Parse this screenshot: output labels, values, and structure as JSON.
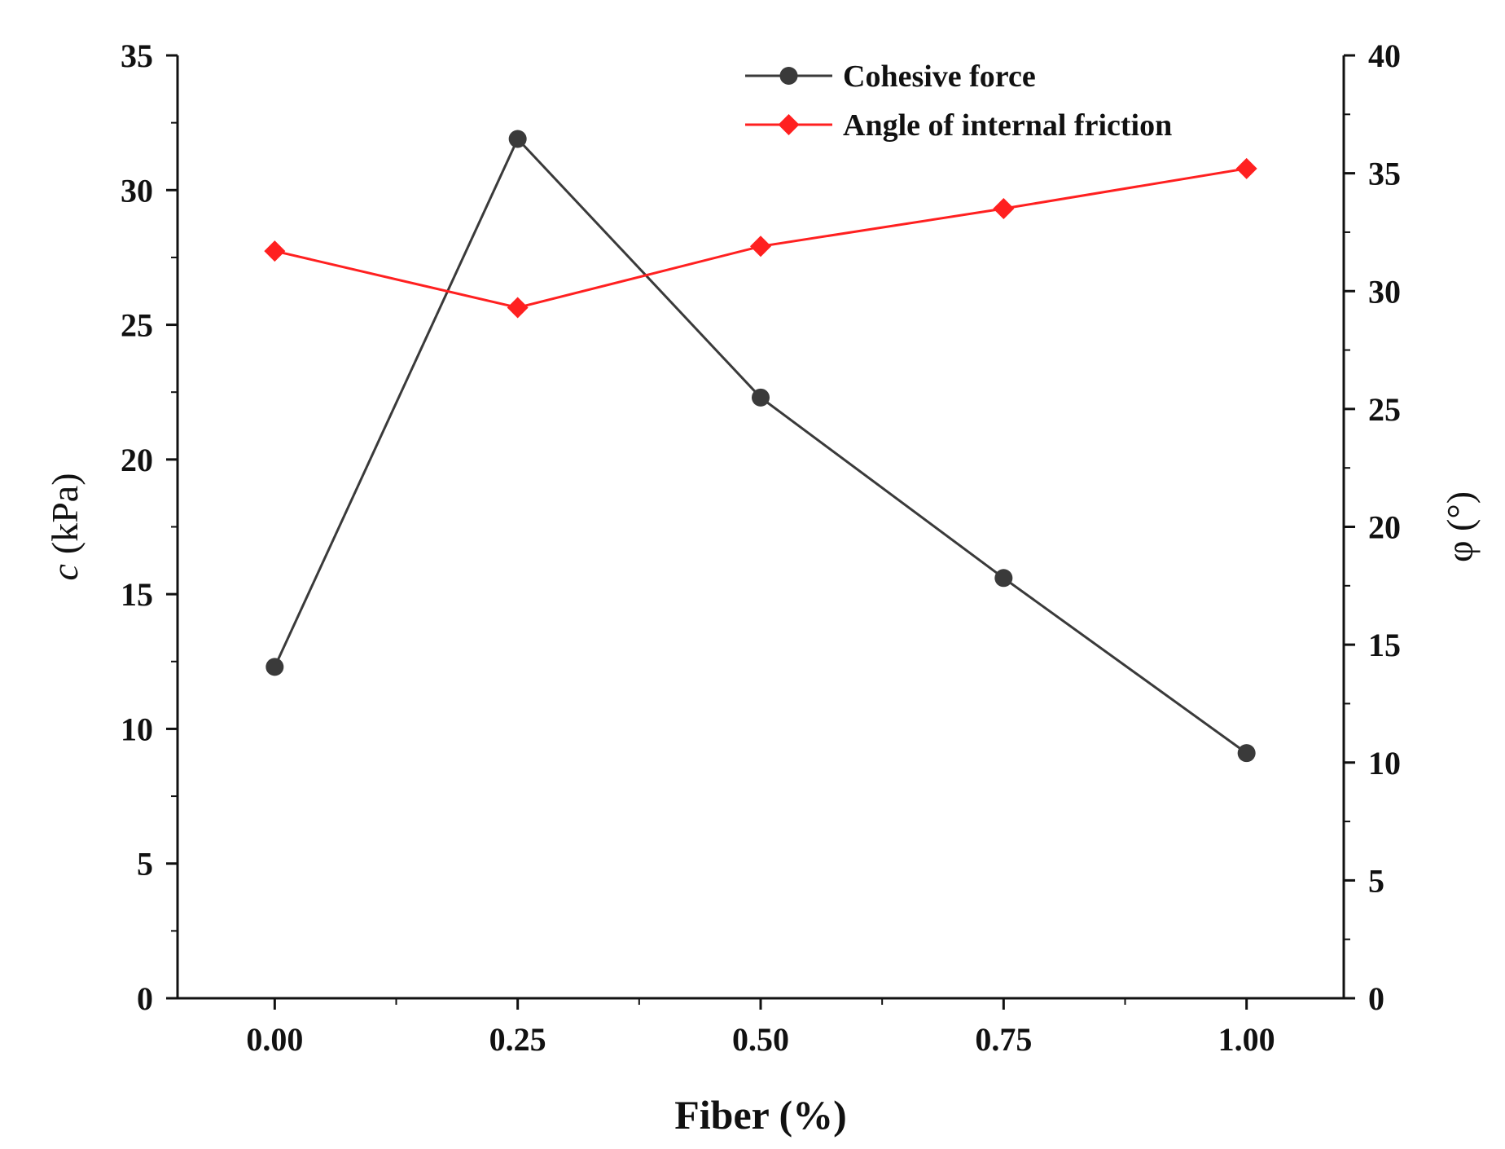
{
  "chart_data": {
    "type": "line",
    "x": [
      0.0,
      0.25,
      0.5,
      0.75,
      1.0
    ],
    "x_tick_labels": [
      "0.00",
      "0.25",
      "0.50",
      "0.75",
      "1.00"
    ],
    "xlabel": "Fiber (%)",
    "xlim": [
      -0.1,
      1.1
    ],
    "y_left": {
      "label_italic": "c",
      "label_unit": "(kPa)",
      "ylim": [
        0,
        35
      ],
      "ticks": [
        0,
        5,
        10,
        15,
        20,
        25,
        30,
        35
      ],
      "tick_labels": [
        "0",
        "5",
        "10",
        "15",
        "20",
        "25",
        "30",
        "35"
      ]
    },
    "y_right": {
      "label": "φ (°)",
      "ylim": [
        0,
        40
      ],
      "ticks": [
        0,
        5,
        10,
        15,
        20,
        25,
        30,
        35,
        40
      ],
      "tick_labels": [
        "0",
        "5",
        "10",
        "15",
        "20",
        "25",
        "30",
        "35",
        "40"
      ]
    },
    "series": [
      {
        "name": "Cohesive force",
        "axis": "left",
        "marker": "circle",
        "color": "#3a3a3a",
        "values": [
          12.3,
          31.9,
          22.3,
          15.6,
          9.1
        ]
      },
      {
        "name": "Angle of internal friction",
        "axis": "right",
        "marker": "diamond",
        "color": "#ff2020",
        "values": [
          31.7,
          29.3,
          31.9,
          33.5,
          35.2
        ]
      }
    ],
    "legend_position": "top-right",
    "grid": false
  }
}
